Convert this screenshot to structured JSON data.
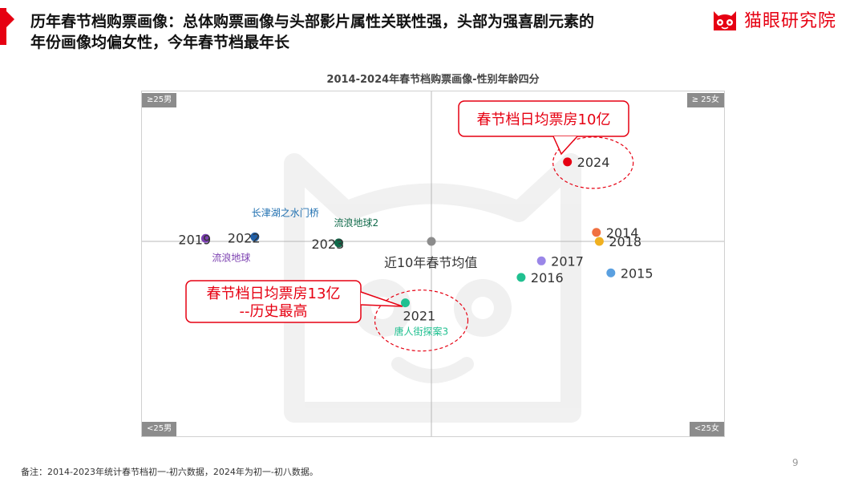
{
  "slide": {
    "headline_line1": "历年春节档购票画像：总体购票画像与头部影片属性关联性强，头部为强喜剧元素的",
    "headline_line2": "年份画像均偏女性，今年春节档最年长",
    "brand_name": "猫眼研究院",
    "footnote": "备注：2014-2023年统计春节档初一-初六数据，2024年为初一-初八数据。",
    "page_number": "9",
    "brand_color": "#e60012"
  },
  "chart_data": {
    "type": "scatter",
    "title": "2014-2024年春节档购票画像-性别年龄四分",
    "quadrant_labels": {
      "top_left": "≥25男",
      "top_right": "≥ 25女",
      "bottom_left": "<25男",
      "bottom_right": "<25女"
    },
    "center_label": "近10年春节均值",
    "points": [
      {
        "label": "2024",
        "x": 0.47,
        "y": 0.53,
        "color": "#e60012",
        "film": ""
      },
      {
        "label": "2014",
        "x": 0.57,
        "y": 0.06,
        "color": "#f07040",
        "film": ""
      },
      {
        "label": "2018",
        "x": 0.58,
        "y": 0.0,
        "color": "#f0b020",
        "film": ""
      },
      {
        "label": "2017",
        "x": 0.38,
        "y": -0.13,
        "color": "#9a86e8",
        "film": ""
      },
      {
        "label": "2016",
        "x": 0.31,
        "y": -0.24,
        "color": "#20c090",
        "film": ""
      },
      {
        "label": "2015",
        "x": 0.62,
        "y": -0.21,
        "color": "#5aa0e0",
        "film": ""
      },
      {
        "label": "2019",
        "x": -0.78,
        "y": 0.02,
        "color": "#7b3fb0",
        "film": "流浪地球"
      },
      {
        "label": "2022",
        "x": -0.61,
        "y": 0.03,
        "color": "#1f5fa8",
        "film": "长津湖之水门桥"
      },
      {
        "label": "2023",
        "x": -0.32,
        "y": -0.01,
        "color": "#106a4a",
        "film": "流浪地球2"
      },
      {
        "label": "2021",
        "x": -0.09,
        "y": -0.41,
        "color": "#20c090",
        "film": "唐人街探案3"
      }
    ],
    "callouts": [
      {
        "text": "春节档日均票房10亿",
        "point": "2024"
      },
      {
        "text": "春节档日均票房13亿\n--历史最高",
        "point": "2021"
      }
    ],
    "xlim": [
      -1,
      1
    ],
    "ylim": [
      -1,
      1
    ],
    "grid": false
  }
}
